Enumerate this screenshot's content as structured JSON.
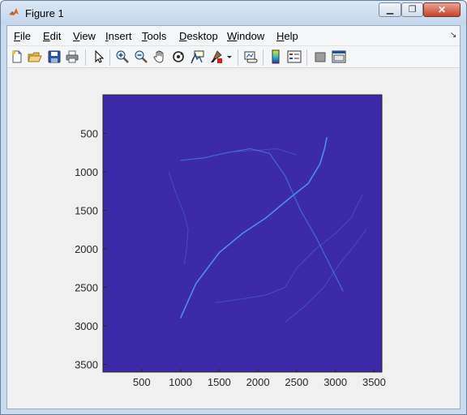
{
  "window": {
    "title": "Figure 1",
    "minimize_label": "▁",
    "maximize_label": "❐",
    "close_label": "✕"
  },
  "menu": {
    "items": [
      {
        "label": "File",
        "accel": "F",
        "rest": "ile"
      },
      {
        "label": "Edit",
        "accel": "E",
        "rest": "dit"
      },
      {
        "label": "View",
        "accel": "V",
        "rest": "iew"
      },
      {
        "label": "Insert",
        "accel": "I",
        "rest": "nsert"
      },
      {
        "label": "Tools",
        "accel": "T",
        "rest": "ools"
      },
      {
        "label": "Desktop",
        "accel": "D",
        "rest": "esktop"
      },
      {
        "label": "Window",
        "accel": "W",
        "rest": "indow"
      },
      {
        "label": "Help",
        "accel": "H",
        "rest": "elp"
      }
    ],
    "dock_arrow": "↘"
  },
  "toolbar": {
    "icons": [
      "new-figure-icon",
      "open-file-icon",
      "save-icon",
      "print-icon",
      "edit-plot-arrow-icon",
      "zoom-in-icon",
      "zoom-out-icon",
      "pan-hand-icon",
      "rotate-3d-icon",
      "data-cursor-icon",
      "brush-icon",
      "brush-dropdown-icon",
      "link-plot-icon",
      "colorbar-icon",
      "legend-icon",
      "hide-plot-tools-icon",
      "show-plot-tools-icon"
    ]
  },
  "colors": {
    "axes_background": "#3c2aa8",
    "trace_color": "#4f8fff"
  },
  "chart_data": {
    "type": "heatmap",
    "title": "",
    "xlabel": "",
    "ylabel": "",
    "xlim": [
      0,
      3600
    ],
    "ylim": [
      3600,
      0
    ],
    "y_reversed": true,
    "x_ticks": [
      500,
      1000,
      1500,
      2000,
      2500,
      3000,
      3500
    ],
    "y_ticks": [
      500,
      1000,
      1500,
      2000,
      2500,
      3000,
      3500
    ],
    "x_tick_labels": [
      "500",
      "1000",
      "1500",
      "2000",
      "2500",
      "3000",
      "3500"
    ],
    "y_tick_labels": [
      "500",
      "1000",
      "1500",
      "2000",
      "2500",
      "3000",
      "3500"
    ],
    "grid": false,
    "traces": [
      {
        "points": [
          [
            1000,
            2900
          ],
          [
            1200,
            2450
          ],
          [
            1500,
            2050
          ],
          [
            1800,
            1800
          ],
          [
            2100,
            1600
          ],
          [
            2400,
            1350
          ],
          [
            2650,
            1150
          ],
          [
            2800,
            900
          ],
          [
            2860,
            700
          ],
          [
            2890,
            550
          ]
        ],
        "strength": "bright"
      },
      {
        "points": [
          [
            1000,
            850
          ],
          [
            1300,
            820
          ],
          [
            1600,
            750
          ],
          [
            1900,
            700
          ],
          [
            2150,
            760
          ],
          [
            2350,
            1050
          ],
          [
            2550,
            1500
          ],
          [
            2750,
            1850
          ],
          [
            2950,
            2250
          ],
          [
            3100,
            2550
          ]
        ],
        "strength": "medium"
      },
      {
        "points": [
          [
            850,
            1000
          ],
          [
            950,
            1300
          ],
          [
            1050,
            1550
          ],
          [
            1100,
            1750
          ],
          [
            1080,
            2000
          ],
          [
            1050,
            2200
          ]
        ],
        "strength": "faint"
      },
      {
        "points": [
          [
            1450,
            2700
          ],
          [
            1800,
            2650
          ],
          [
            2100,
            2600
          ],
          [
            2350,
            2500
          ],
          [
            2500,
            2250
          ],
          [
            2750,
            2000
          ],
          [
            3000,
            1800
          ],
          [
            3200,
            1600
          ],
          [
            3350,
            1300
          ]
        ],
        "strength": "faint"
      },
      {
        "points": [
          [
            2350,
            2950
          ],
          [
            2600,
            2750
          ],
          [
            2850,
            2500
          ],
          [
            3050,
            2200
          ],
          [
            3250,
            1950
          ],
          [
            3400,
            1750
          ]
        ],
        "strength": "faint"
      },
      {
        "points": [
          [
            1700,
            740
          ],
          [
            2000,
            720
          ],
          [
            2250,
            700
          ],
          [
            2500,
            780
          ]
        ],
        "strength": "faint"
      }
    ]
  }
}
